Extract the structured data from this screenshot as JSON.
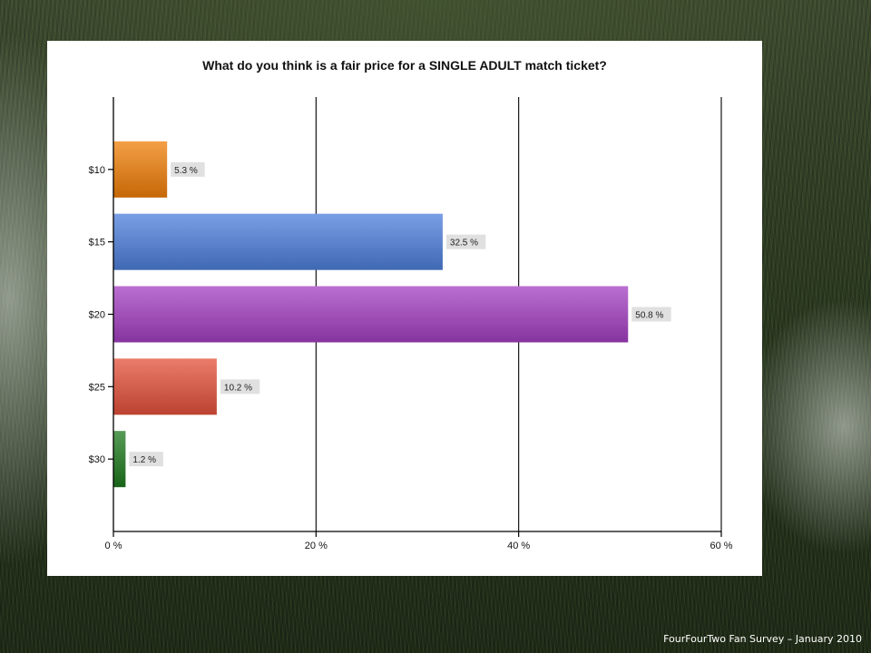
{
  "chart_data": {
    "type": "bar",
    "orientation": "horizontal",
    "title": "What do you think is a fair price for a SINGLE ADULT match ticket?",
    "categories": [
      "$10",
      "$15",
      "$20",
      "$25",
      "$30"
    ],
    "values": [
      5.3,
      32.5,
      50.8,
      10.2,
      1.2
    ],
    "data_labels": [
      "5.3 %",
      "32.5 %",
      "50.8 %",
      "10.2 %",
      "1.2 %"
    ],
    "value_unit": "%",
    "xlim": [
      0,
      60
    ],
    "xticks": [
      0,
      20,
      40,
      60
    ],
    "xtick_labels": [
      "0 %",
      "20 %",
      "40 %",
      "60 %"
    ],
    "grid": "vertical",
    "xlabel": "",
    "ylabel": "",
    "colors": [
      "#f07f09",
      "#4d7fdc",
      "#a43fc2",
      "#e4503a",
      "#1e7a1e"
    ]
  },
  "footer": {
    "caption": "FourFourTwo Fan Survey – January 2010"
  }
}
